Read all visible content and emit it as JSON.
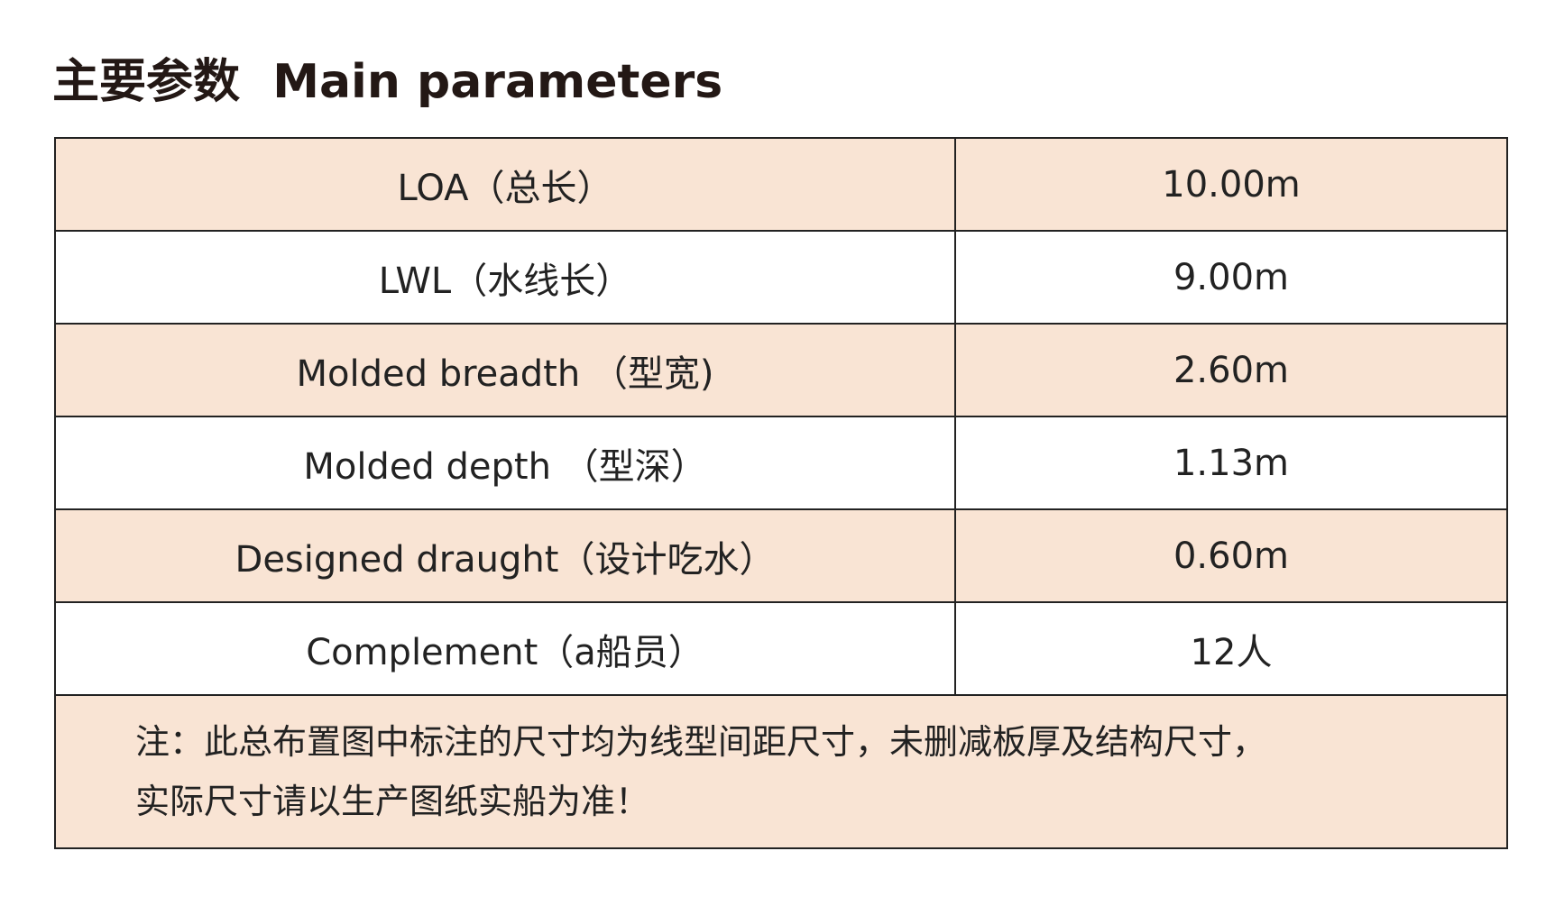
{
  "header": {
    "title": "主要参数  Main parameters"
  },
  "table": {
    "rows": [
      [
        "LOA（总长）",
        "10.00m"
      ],
      [
        "LWL（水线长）",
        "9.00m"
      ],
      [
        "Molded breadth （型宽)",
        "2.60m"
      ],
      [
        "Molded depth （型深）",
        "1.13m"
      ],
      [
        "Designed draught（设计吃水）",
        "0.60m"
      ],
      [
        "Complement（a船员）",
        "12人"
      ]
    ],
    "note": [
      "注：此总布置图中标注的尺寸均为线型间距尺寸，未删减板厚及结构尺寸，",
      "实际尺寸请以生产图纸实船为准！"
    ]
  }
}
